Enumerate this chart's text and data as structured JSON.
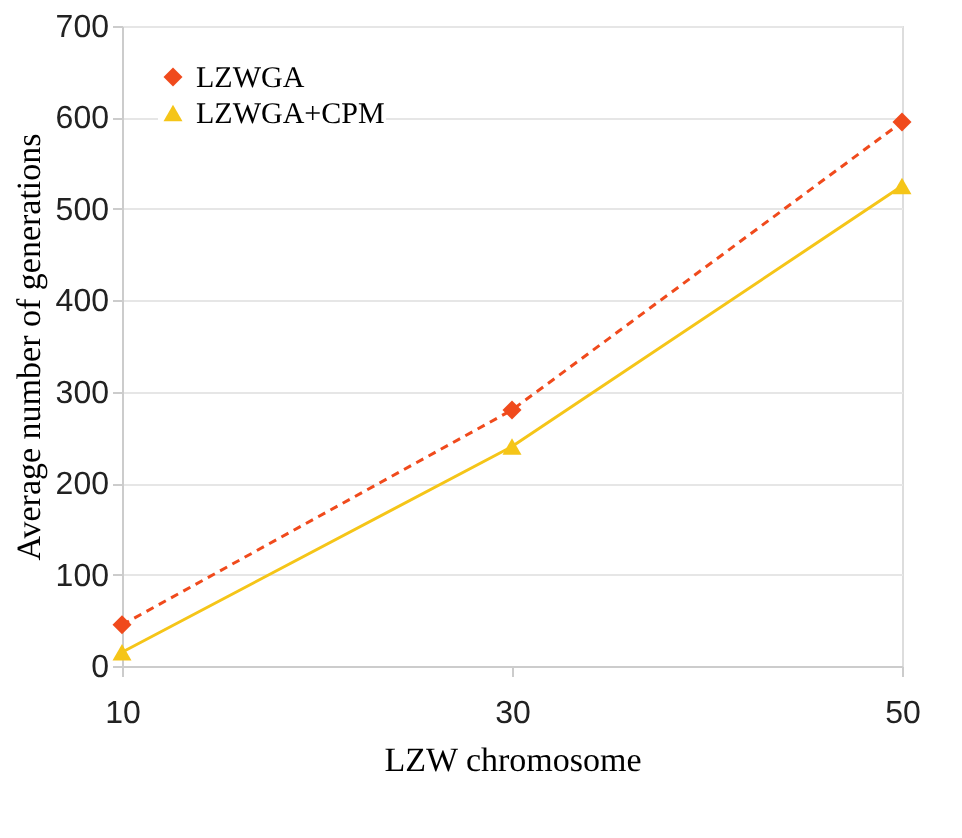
{
  "chart_data": {
    "type": "line",
    "xlabel": "LZW chromosome",
    "ylabel": "Average number of generations",
    "x": [
      10,
      30,
      50
    ],
    "series": [
      {
        "name": "LZWGA",
        "color": "#f04a1c",
        "values": [
          45,
          280,
          595
        ],
        "marker": "diamond",
        "line_style": "dashed"
      },
      {
        "name": "LZWGA+CPM",
        "color": "#f5c518",
        "values": [
          15,
          240,
          525
        ],
        "marker": "triangle",
        "line_style": "solid"
      }
    ],
    "xlim": [
      10,
      50
    ],
    "xticks": [
      10,
      30,
      50
    ],
    "ylim": [
      0,
      700
    ],
    "yticks": [
      0,
      100,
      200,
      300,
      400,
      500,
      600,
      700
    ],
    "grid": "y",
    "legend": "top left"
  }
}
